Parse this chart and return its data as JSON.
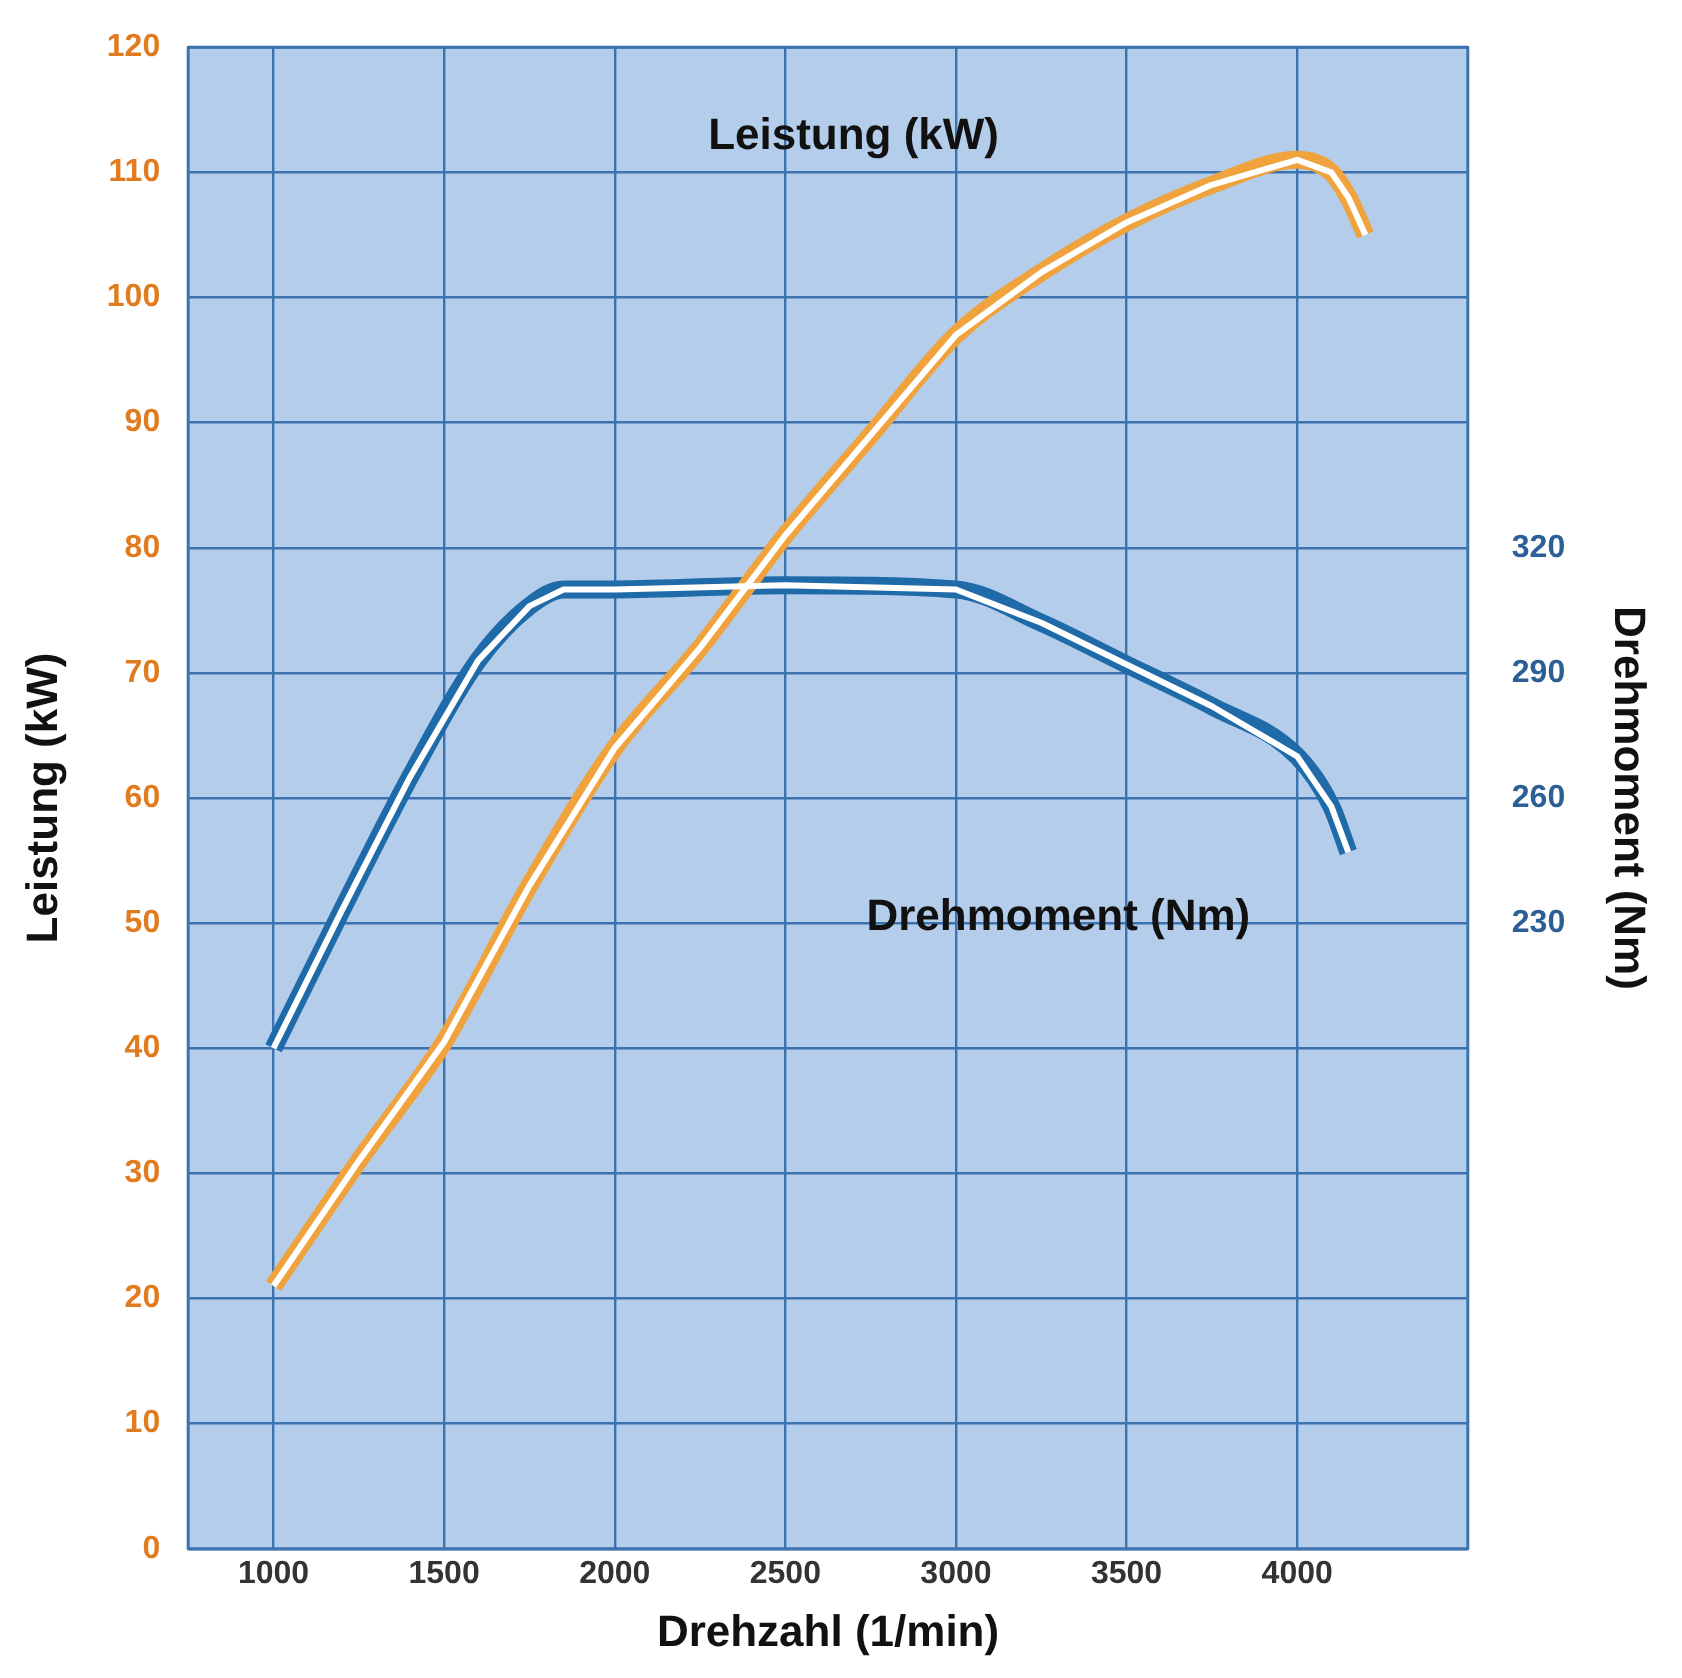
{
  "chart_data": {
    "type": "line",
    "xlabel": "Drehzahl (1/min)",
    "ylabel": "Leistung (kW)",
    "y2label": "Drehmoment (Nm)",
    "xlim": [
      750,
      4500
    ],
    "xticks": [
      1000,
      1500,
      2000,
      2500,
      3000,
      3500,
      4000
    ],
    "ylim": [
      0,
      120
    ],
    "yticks": [
      0,
      10,
      20,
      30,
      40,
      50,
      60,
      70,
      80,
      90,
      100,
      110,
      120
    ],
    "y2lim": [
      80,
      440
    ],
    "y2ticks": [
      230,
      260,
      290,
      320
    ],
    "grid": true,
    "legend": false,
    "marker": "none",
    "line_style": "solid",
    "series": [
      {
        "color": "#f0a23c",
        "x": [
          1000,
          1250,
          1500,
          1750,
          2000,
          2250,
          2500,
          2750,
          3000,
          3250,
          3500,
          3750,
          4000,
          4100,
          4150,
          4200
        ],
        "values": [
          21,
          31,
          40.5,
          53,
          64,
          72,
          81,
          89,
          97,
          102,
          106,
          109,
          111,
          110,
          108,
          105
        ]
      },
      {
        "color": "#1f6aa8",
        "axis": "y2",
        "x": [
          1000,
          1200,
          1400,
          1600,
          1750,
          1850,
          2000,
          2500,
          3000,
          3250,
          3500,
          3750,
          4000,
          4100,
          4150
        ],
        "values": [
          200,
          233,
          265,
          293,
          306,
          310,
          310,
          311,
          310,
          302,
          292,
          282,
          270,
          258,
          247
        ]
      }
    ],
    "annotations": [
      "Leistung (kW)",
      "Drehmoment (Nm)"
    ]
  }
}
